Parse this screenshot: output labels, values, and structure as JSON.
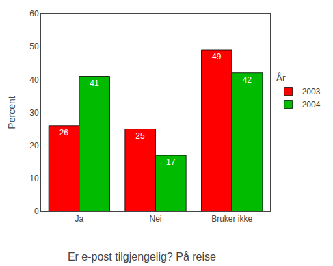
{
  "chart_data": {
    "type": "bar",
    "title": "Er e-post tilgjengelig? På reise",
    "ylabel": "Percent",
    "legend_title": "År",
    "categories": [
      "Ja",
      "Nei",
      "Bruker ikke"
    ],
    "series": [
      {
        "name": "2003",
        "color": "#ff0000",
        "values": [
          26,
          25,
          49
        ]
      },
      {
        "name": "2004",
        "color": "#00bb00",
        "values": [
          41,
          17,
          42
        ]
      }
    ],
    "ylim": [
      0,
      60
    ],
    "yticks": [
      0,
      10,
      20,
      30,
      40,
      50,
      60
    ],
    "grid": false,
    "legend": "right",
    "data_labels": true
  }
}
